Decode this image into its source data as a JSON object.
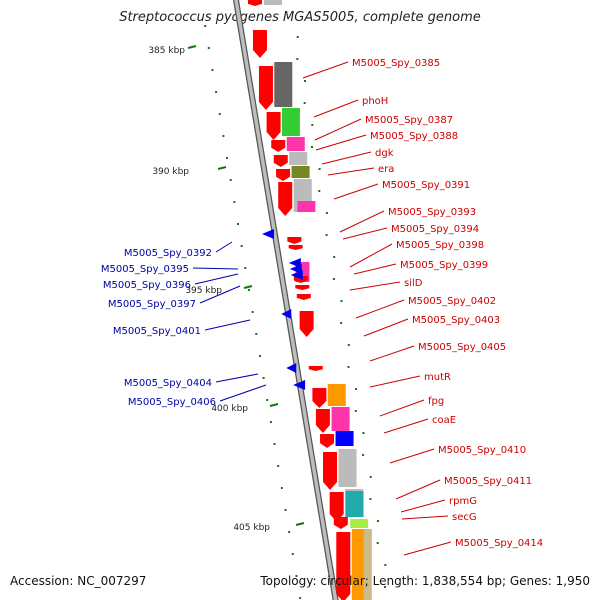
{
  "title": "Streptococcus pyogenes MGAS5005, complete genome",
  "footer": {
    "accession": "Accession: NC_007297",
    "summary": "Topology: circular; Length: 1,838,554 bp; Genes: 1,950"
  },
  "scale_labels": [
    "385 kbp",
    "390 kbp",
    "395 kbp",
    "400 kbp",
    "405 kbp"
  ],
  "colors": {
    "forward_gene": "#ff0000",
    "reverse_gene": "#0000ee",
    "forward_label": "#cc0000",
    "reverse_label": "#0000aa",
    "backbone": "#999999",
    "scale_tick": "#117711",
    "cog_dark_gray": "#666666",
    "cog_light_gray": "#bbbbbb",
    "cog_green": "#33cc33",
    "cog_magenta": "#ff33aa",
    "cog_olive": "#778822",
    "cog_orange": "#ff9900",
    "cog_blue": "#0000ff",
    "cog_teal": "#22aaaa",
    "cog_lime": "#aaee44",
    "cog_tan": "#ccbb88"
  },
  "forward_labels": [
    "M5005_Spy_0385",
    "phoH",
    "M5005_Spy_0387",
    "M5005_Spy_0388",
    "dgk",
    "era",
    "M5005_Spy_0391",
    "M5005_Spy_0393",
    "M5005_Spy_0394",
    "M5005_Spy_0398",
    "M5005_Spy_0399",
    "silD",
    "M5005_Spy_0402",
    "M5005_Spy_0403",
    "M5005_Spy_0405",
    "mutR",
    "fpg",
    "coaE",
    "M5005_Spy_0410",
    "M5005_Spy_0411",
    "rpmG",
    "secG",
    "M5005_Spy_0414"
  ],
  "reverse_labels": [
    "M5005_Spy_0392",
    "M5005_Spy_0395",
    "M5005_Spy_0396",
    "M5005_Spy_0397",
    "M5005_Spy_0401",
    "M5005_Spy_0404",
    "M5005_Spy_0406"
  ]
}
